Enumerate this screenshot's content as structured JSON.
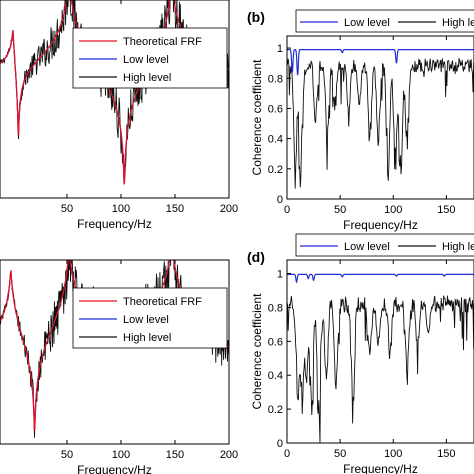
{
  "colors": {
    "theoretical": "#e8121c",
    "low": "#1f2ed6",
    "high": "#101010",
    "axis": "#000000",
    "background": "#ffffff"
  },
  "chart_data": [
    {
      "id": "a",
      "type": "line",
      "panel_label": "",
      "xlabel": "Frequency/Hz",
      "ylabel": "",
      "xlim": [
        -12,
        200
      ],
      "x_ticks": [
        50,
        100,
        150,
        200
      ],
      "y_ticks": [],
      "y_scale": "log",
      "legend": {
        "placement": "top-right",
        "entries": [
          "Theoretical FRF",
          "Low level",
          "High level"
        ]
      },
      "series": [
        {
          "name": "Theoretical FRF",
          "kind": "frf",
          "peaks_hz": [
            0,
            52,
            147
          ],
          "antiresonances_hz": [
            5,
            103
          ],
          "noise": 0
        },
        {
          "name": "Low level",
          "kind": "frf",
          "peaks_hz": [
            0,
            52,
            147
          ],
          "antiresonances_hz": [
            5,
            103
          ],
          "noise": 0.01
        },
        {
          "name": "High level",
          "kind": "frf",
          "peaks_hz": [
            0,
            52,
            147
          ],
          "antiresonances_hz": [
            5,
            103
          ],
          "noise": 0.35
        }
      ]
    },
    {
      "id": "b",
      "type": "line",
      "panel_label": "(b)",
      "xlabel": "Frequency/Hz",
      "ylabel": "Coherence coefficient",
      "xlim": [
        0,
        176
      ],
      "ylim": [
        0,
        1.08
      ],
      "x_ticks": [
        0,
        50,
        100,
        150
      ],
      "y_ticks": [
        0,
        0.2,
        0.4,
        0.6,
        0.8,
        1
      ],
      "legend": {
        "placement": "top",
        "entries": [
          "Low level",
          "High level"
        ]
      },
      "series": [
        {
          "name": "Low level",
          "kind": "coherence-low",
          "baseline": 0.99,
          "dips": [
            [
              5,
              0.84
            ],
            [
              10,
              0.82
            ],
            [
              52,
              0.97
            ],
            [
              103,
              0.9
            ]
          ]
        },
        {
          "name": "High level",
          "kind": "coherence-high",
          "base": 0.93,
          "noise": 0.09,
          "dips": [
            [
              8,
              0.05
            ],
            [
              13,
              0.02
            ],
            [
              27,
              0.45
            ],
            [
              38,
              0.35
            ],
            [
              45,
              0.55
            ],
            [
              58,
              0.55
            ],
            [
              68,
              0.6
            ],
            [
              78,
              0.25
            ],
            [
              86,
              0.3
            ],
            [
              95,
              0.05
            ],
            [
              102,
              0.0
            ],
            [
              107,
              0.05
            ],
            [
              113,
              0.2
            ]
          ]
        }
      ]
    },
    {
      "id": "c",
      "type": "line",
      "panel_label": "",
      "xlabel": "Frequency/Hz",
      "ylabel": "",
      "xlim": [
        -12,
        200
      ],
      "x_ticks": [
        50,
        100,
        150,
        200
      ],
      "y_ticks": [],
      "y_scale": "log",
      "legend": {
        "placement": "top-right",
        "entries": [
          "Theoretical FRF",
          "Low level",
          "High level"
        ]
      },
      "series": [
        {
          "name": "Theoretical FRF",
          "kind": "frf",
          "peaks_hz": [
            -2,
            52,
            147
          ],
          "antiresonances_hz": [
            20
          ],
          "noise": 0
        },
        {
          "name": "Low level",
          "kind": "frf",
          "peaks_hz": [
            -2,
            52,
            147
          ],
          "antiresonances_hz": [
            20
          ],
          "noise": 0.01
        },
        {
          "name": "High level",
          "kind": "frf",
          "peaks_hz": [
            -2,
            52,
            147
          ],
          "antiresonances_hz": [
            20
          ],
          "noise": 0.4
        }
      ]
    },
    {
      "id": "d",
      "type": "line",
      "panel_label": "(d)",
      "xlabel": "Frequency/Hz",
      "ylabel": "Coherence coefficient",
      "xlim": [
        0,
        176
      ],
      "ylim": [
        0,
        1.08
      ],
      "x_ticks": [
        0,
        50,
        100,
        150
      ],
      "y_ticks": [
        0,
        0.2,
        0.4,
        0.6,
        0.8,
        1
      ],
      "legend": {
        "placement": "top",
        "entries": [
          "Low level",
          "High level"
        ]
      },
      "series": [
        {
          "name": "Low level",
          "kind": "coherence-low",
          "baseline": 0.995,
          "dips": [
            [
              9,
              0.95
            ],
            [
              20,
              0.97
            ],
            [
              25,
              0.96
            ],
            [
              52,
              0.98
            ],
            [
              103,
              0.985
            ],
            [
              148,
              0.985
            ]
          ]
        },
        {
          "name": "High level",
          "kind": "coherence-high",
          "base": 0.87,
          "noise": 0.1,
          "dips": [
            [
              10,
              0.15
            ],
            [
              14,
              0.1
            ],
            [
              18,
              0.3
            ],
            [
              23,
              0.05
            ],
            [
              30,
              0.0
            ],
            [
              37,
              0.3
            ],
            [
              46,
              0.2
            ],
            [
              62,
              0.1
            ],
            [
              78,
              0.4
            ],
            [
              86,
              0.5
            ],
            [
              97,
              0.45
            ],
            [
              113,
              0.35
            ],
            [
              123,
              0.55
            ],
            [
              133,
              0.6
            ]
          ]
        }
      ]
    }
  ]
}
